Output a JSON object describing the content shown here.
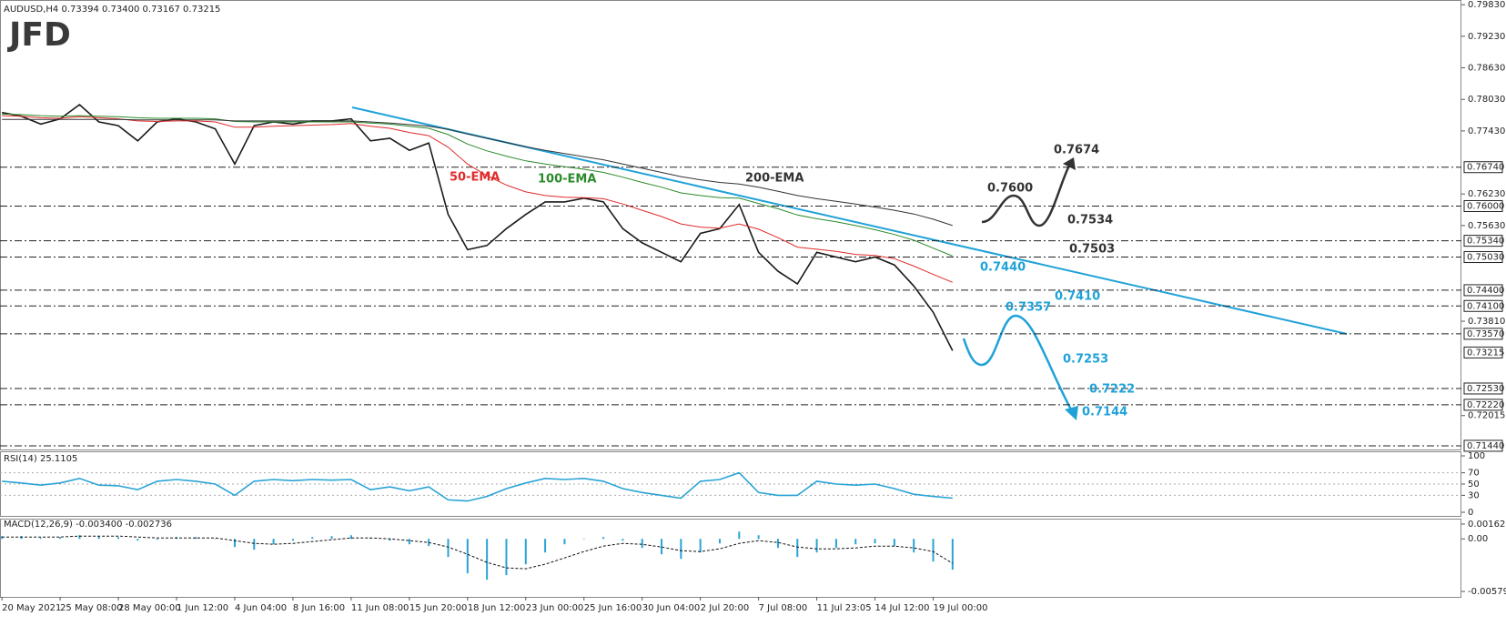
{
  "logo": "JFD",
  "chart_data": [
    {
      "type": "line",
      "title": "AUDUSD,H4  0.73394 0.73400 0.73167 0.73215",
      "categories": [
        "20 May 2021",
        null,
        null,
        "25 May 08:00",
        null,
        null,
        "28 May 00:00",
        null,
        null,
        "1 Jun 12:00",
        null,
        null,
        "4 Jun 04:00",
        null,
        null,
        "8 Jun 16:00",
        null,
        null,
        "11 Jun 08:00",
        null,
        null,
        "15 Jun 20:00",
        null,
        null,
        "18 Jun 12:00",
        null,
        null,
        "23 Jun 00:00",
        null,
        null,
        "25 Jun 16:00",
        null,
        null,
        "30 Jun 04:00",
        null,
        null,
        "2 Jul 20:00",
        null,
        null,
        "7 Jul 08:00",
        null,
        null,
        "11 Jul 23:05",
        null,
        null,
        "14 Jul 12:00",
        null,
        null,
        "19 Jul 00:00",
        null
      ],
      "series": [
        {
          "color": "#1a1a1a",
          "values": [
            0.7778,
            0.7771,
            0.7756,
            0.7766,
            0.7793,
            0.776,
            0.7753,
            0.7724,
            0.776,
            0.7766,
            0.776,
            0.7747,
            0.768,
            0.7753,
            0.776,
            0.7756,
            0.7762,
            0.7762,
            0.7766,
            0.7724,
            0.7729,
            0.7706,
            0.772,
            0.7584,
            0.7517,
            0.7525,
            0.7557,
            0.7584,
            0.7608,
            0.7608,
            0.7615,
            0.7608,
            0.7557,
            0.753,
            0.7512,
            0.7494,
            0.7548,
            0.7557,
            0.7603,
            0.7512,
            0.7476,
            0.7452,
            0.7512,
            0.7503,
            0.7494,
            0.7503,
            0.7488,
            0.7448,
            0.7398,
            0.7325
          ]
        },
        {
          "name": "50-EMA",
          "color": "#e02a2a",
          "values": [
            0.7772,
            0.7771,
            0.7768,
            0.7767,
            0.777,
            0.7768,
            0.7766,
            0.7762,
            0.7761,
            0.7762,
            0.7762,
            0.776,
            0.775,
            0.775,
            0.7752,
            0.7753,
            0.7754,
            0.7755,
            0.7757,
            0.7752,
            0.7748,
            0.774,
            0.7734,
            0.7712,
            0.768,
            0.7658,
            0.764,
            0.7627,
            0.762,
            0.7617,
            0.7616,
            0.7614,
            0.7604,
            0.7592,
            0.758,
            0.7566,
            0.756,
            0.7558,
            0.7566,
            0.7556,
            0.754,
            0.7522,
            0.7518,
            0.7514,
            0.7508,
            0.7506,
            0.75,
            0.7486,
            0.747,
            0.7455
          ]
        },
        {
          "name": "100-EMA",
          "color": "#2a8a2a",
          "values": [
            0.7775,
            0.7774,
            0.7772,
            0.7771,
            0.7772,
            0.7771,
            0.777,
            0.7768,
            0.7767,
            0.7767,
            0.7767,
            0.7766,
            0.7761,
            0.776,
            0.776,
            0.776,
            0.776,
            0.776,
            0.776,
            0.7758,
            0.7756,
            0.7752,
            0.7748,
            0.7736,
            0.7718,
            0.7705,
            0.7695,
            0.7686,
            0.768,
            0.7675,
            0.767,
            0.7664,
            0.7655,
            0.7645,
            0.7636,
            0.7625,
            0.762,
            0.7616,
            0.7615,
            0.7605,
            0.7595,
            0.7583,
            0.7576,
            0.757,
            0.7563,
            0.7555,
            0.7546,
            0.7535,
            0.752,
            0.7505
          ]
        },
        {
          "name": "200-EMA",
          "color": "#333333",
          "values": [
            0.7765,
            0.7765,
            0.7765,
            0.7765,
            0.7765,
            0.7765,
            0.7765,
            0.7764,
            0.7764,
            0.7764,
            0.7764,
            0.7764,
            0.7762,
            0.7762,
            0.7762,
            0.7762,
            0.7762,
            0.7762,
            0.7762,
            0.776,
            0.7758,
            0.7755,
            0.7752,
            0.7746,
            0.7737,
            0.7729,
            0.7721,
            0.7713,
            0.7706,
            0.77,
            0.7694,
            0.7688,
            0.768,
            0.7672,
            0.7664,
            0.7656,
            0.765,
            0.7645,
            0.7642,
            0.7636,
            0.7628,
            0.762,
            0.7614,
            0.7609,
            0.7604,
            0.7598,
            0.7592,
            0.7585,
            0.7575,
            0.7563
          ]
        }
      ],
      "ylim": [
        0.7137,
        0.7992
      ],
      "yticks": [
        {
          "value": 0.7983,
          "label": "0.79830"
        },
        {
          "value": 0.7923,
          "label": "0.79230"
        },
        {
          "value": 0.7863,
          "label": "0.78630"
        },
        {
          "value": 0.7803,
          "label": "0.78030"
        },
        {
          "value": 0.7743,
          "label": "0.77430"
        },
        {
          "value": 0.7623,
          "label": "0.76230"
        },
        {
          "value": 0.7563,
          "label": "0.75630"
        },
        {
          "value": 0.7381,
          "label": "0.73810"
        },
        0.72015
      ],
      "levels": [
        {
          "value": 0.7674,
          "label": "0.76740"
        },
        {
          "value": 0.76,
          "label": "0.76000"
        },
        {
          "value": 0.7534,
          "label": "0.75340"
        },
        {
          "value": 0.7503,
          "label": "0.75030"
        },
        {
          "value": 0.744,
          "label": "0.74400"
        },
        {
          "value": 0.741,
          "label": "0.74100"
        },
        {
          "value": 0.7357,
          "label": "0.73570"
        },
        {
          "value": 0.7253,
          "label": "0.72530"
        },
        {
          "value": 0.7222,
          "label": "0.72220"
        },
        {
          "value": 0.7144,
          "label": "0.71440"
        }
      ],
      "current": {
        "value": 0.73215,
        "label": "0.73215"
      },
      "annotations": [
        {
          "text": "0.7674",
          "color": "#333333"
        },
        {
          "text": "0.7600",
          "color": "#333333"
        },
        {
          "text": "0.7534",
          "color": "#333333"
        },
        {
          "text": "0.7503",
          "color": "#333333"
        },
        {
          "text": "0.7440",
          "color": "#1fa2d8"
        },
        {
          "text": "0.7410",
          "color": "#1fa2d8"
        },
        {
          "text": "0.7357",
          "color": "#1fa2d8"
        },
        {
          "text": "0.7253",
          "color": "#1fa2d8"
        },
        {
          "text": "0.7222",
          "color": "#1fa2d8"
        },
        {
          "text": "0.7144",
          "color": "#1fa2d8"
        }
      ]
    },
    {
      "type": "line",
      "title": "RSI(14) 25.1105",
      "series": [
        {
          "color": "#29a3d6",
          "values": [
            55,
            52,
            48,
            52,
            60,
            48,
            47,
            40,
            55,
            58,
            55,
            50,
            30,
            55,
            58,
            56,
            58,
            57,
            58,
            40,
            45,
            38,
            45,
            22,
            20,
            28,
            42,
            52,
            60,
            58,
            60,
            55,
            42,
            35,
            30,
            25,
            55,
            58,
            70,
            35,
            30,
            30,
            55,
            50,
            48,
            50,
            42,
            32,
            28,
            25
          ]
        }
      ],
      "ylim": [
        0,
        100
      ],
      "yticks": [
        100,
        70,
        50,
        30,
        0
      ]
    },
    {
      "type": "macd",
      "title": "MACD(12,26,9) -0.003400 -0.002736",
      "series": [
        {
          "color": "#29a3d6",
          "values": [
            0.0003,
            0.0003,
            0.0001,
            0.0002,
            0.0004,
            0.0003,
            0.0002,
            -0.0002,
            -0.0001,
            0.0002,
            0.0002,
            0.0,
            -0.0009,
            -0.0012,
            -0.0006,
            -0.0002,
            0.0002,
            0.0003,
            0.0004,
            0.0001,
            -0.0002,
            -0.0006,
            -0.0008,
            -0.002,
            -0.0038,
            -0.0045,
            -0.004,
            -0.0028,
            -0.0015,
            -0.0006,
            0.0,
            0.0002,
            -0.0002,
            -0.001,
            -0.0017,
            -0.0022,
            -0.0015,
            -0.0005,
            0.0008,
            0.0004,
            -0.001,
            -0.002,
            -0.0015,
            -0.001,
            -0.0006,
            -0.0005,
            -0.0008,
            -0.0015,
            -0.0025,
            -0.0034
          ]
        },
        {
          "color": "#111111",
          "values": [
            0.0002,
            0.0002,
            0.0002,
            0.0002,
            0.0003,
            0.0003,
            0.0003,
            0.0002,
            0.0001,
            0.0001,
            0.0001,
            0.0001,
            -0.0002,
            -0.0005,
            -0.0006,
            -0.0005,
            -0.0003,
            -0.0001,
            0.0001,
            0.0001,
            0.0,
            -0.0002,
            -0.0004,
            -0.0009,
            -0.0017,
            -0.0026,
            -0.0032,
            -0.0033,
            -0.0028,
            -0.0021,
            -0.0014,
            -0.0008,
            -0.0005,
            -0.0006,
            -0.0009,
            -0.0013,
            -0.0014,
            -0.0011,
            -0.0005,
            -0.0002,
            -0.0004,
            -0.0009,
            -0.0011,
            -0.0011,
            -0.001,
            -0.0008,
            -0.0008,
            -0.001,
            -0.0014,
            -0.0027
          ]
        }
      ],
      "ylim": [
        -0.005795,
        0.001628
      ],
      "yticks": [
        0.001628,
        {
          "value": 0,
          "label": "0.00"
        },
        -0.005795
      ]
    }
  ]
}
